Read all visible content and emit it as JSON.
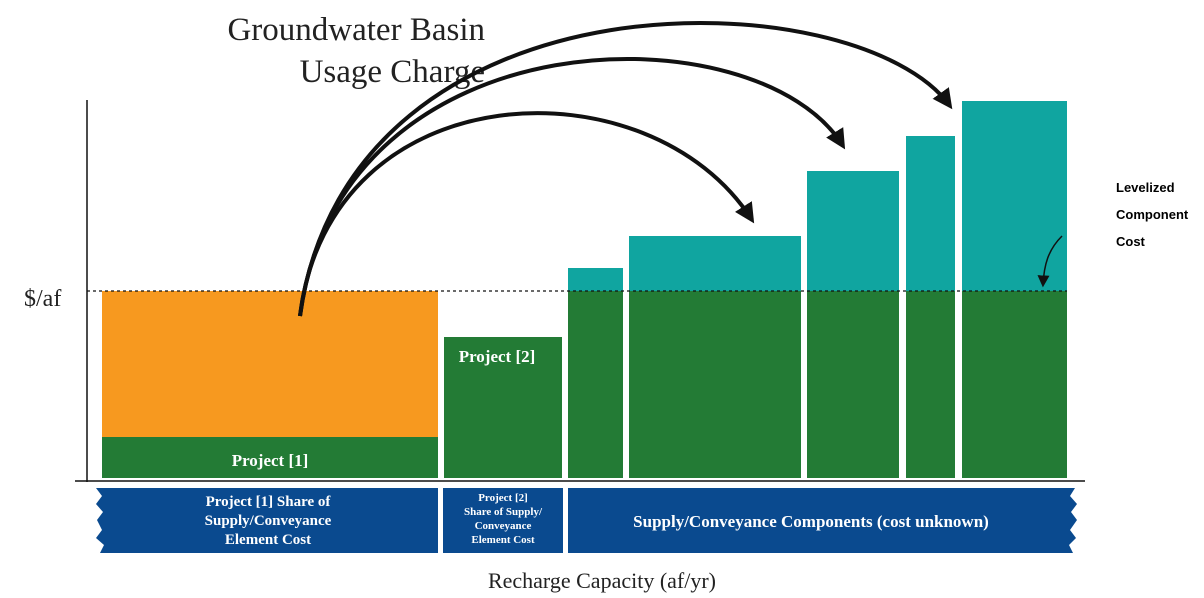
{
  "title": [
    "Groundwater Basin",
    "Usage Charge"
  ],
  "y_axis_label": "$/af",
  "x_axis_label": "Recharge Capacity (af/yr)",
  "bar_labels": [
    "Project [1]",
    "Project [2]"
  ],
  "bands": [
    {
      "lines": [
        "Project [1] Share of",
        "Supply/Conveyance",
        "Element Cost"
      ]
    },
    {
      "lines": [
        "Project [2]",
        "Share of Supply/",
        "Conveyance",
        "Element Cost"
      ]
    },
    {
      "lines": [
        "Supply/Conveyance Components (cost unknown)"
      ]
    }
  ],
  "annotation": [
    "Levelized",
    "Component",
    "Cost"
  ]
}
